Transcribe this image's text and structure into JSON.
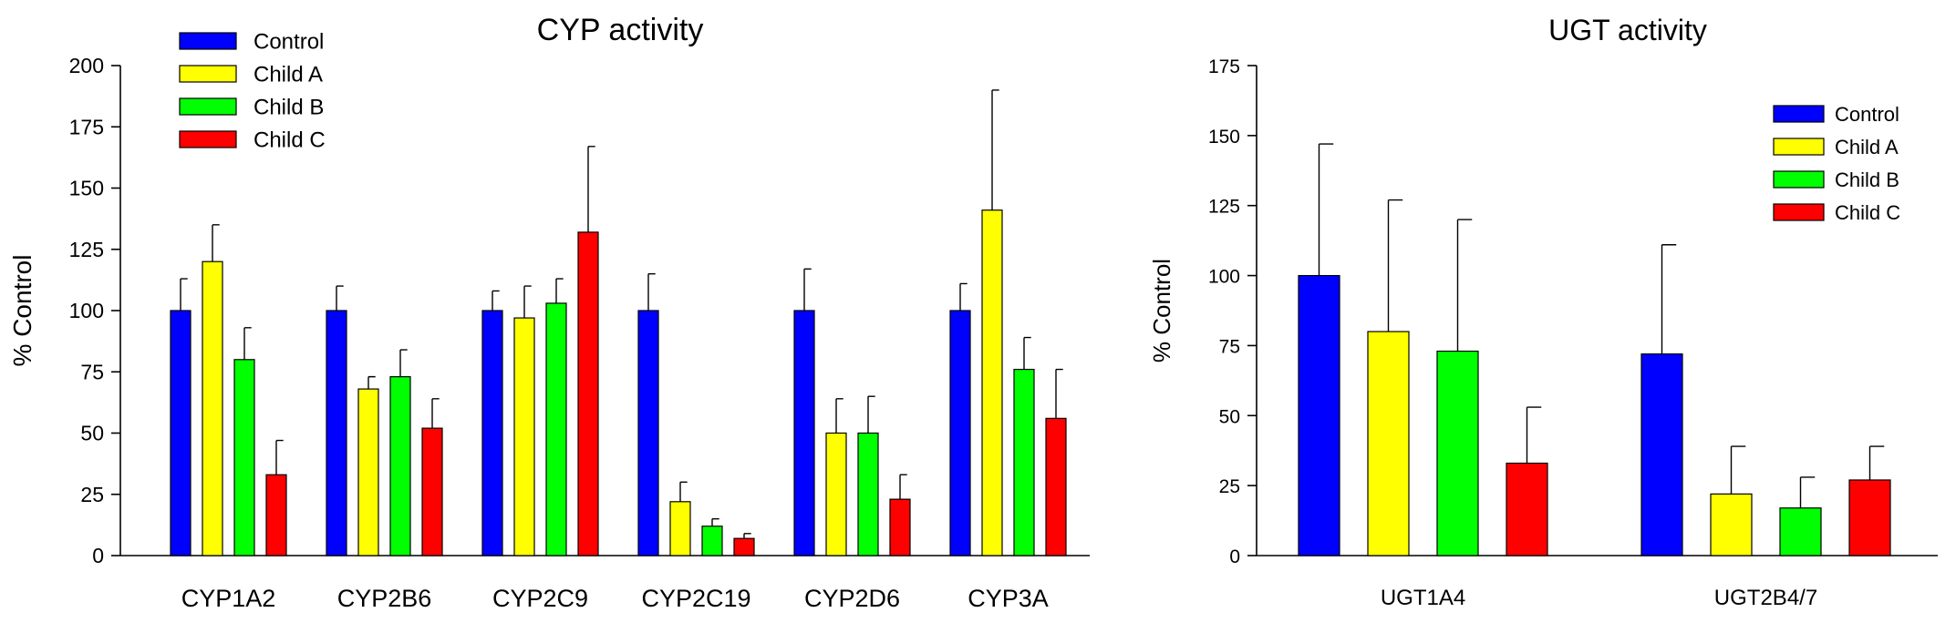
{
  "chart_data": [
    {
      "type": "bar",
      "title": "CYP activity",
      "xlabel": "",
      "ylabel": "% Control",
      "ylim": [
        0,
        200
      ],
      "yticks": [
        0,
        25,
        50,
        75,
        100,
        125,
        150,
        175,
        200
      ],
      "categories": [
        "CYP1A2",
        "CYP2B6",
        "CYP2C9",
        "CYP2C19",
        "CYP2D6",
        "CYP3A"
      ],
      "legend_position": "top-left",
      "series": [
        {
          "name": "Control",
          "color": "#0000ff",
          "values": [
            100,
            100,
            100,
            100,
            100,
            100
          ],
          "errors": [
            13,
            10,
            8,
            15,
            17,
            11
          ]
        },
        {
          "name": "Child A",
          "color": "#ffff00",
          "values": [
            120,
            68,
            97,
            22,
            50,
            141
          ],
          "errors": [
            15,
            5,
            13,
            8,
            14,
            49
          ]
        },
        {
          "name": "Child B",
          "color": "#00ff00",
          "values": [
            80,
            73,
            103,
            12,
            50,
            76
          ],
          "errors": [
            13,
            11,
            10,
            3,
            15,
            13
          ]
        },
        {
          "name": "Child C",
          "color": "#ff0000",
          "values": [
            33,
            52,
            132,
            7,
            23,
            56
          ],
          "errors": [
            14,
            12,
            35,
            2,
            10,
            20
          ]
        }
      ]
    },
    {
      "type": "bar",
      "title": "UGT activity",
      "xlabel": "",
      "ylabel": "% Control",
      "ylim": [
        0,
        175
      ],
      "yticks": [
        0,
        25,
        50,
        75,
        100,
        125,
        150,
        175
      ],
      "categories": [
        "UGT1A4",
        "UGT2B4/7"
      ],
      "legend_position": "top-right",
      "series": [
        {
          "name": "Control",
          "color": "#0000ff",
          "values": [
            100,
            72
          ],
          "errors": [
            47,
            39
          ]
        },
        {
          "name": "Child A",
          "color": "#ffff00",
          "values": [
            80,
            22
          ],
          "errors": [
            47,
            17
          ]
        },
        {
          "name": "Child B",
          "color": "#00ff00",
          "values": [
            73,
            17
          ],
          "errors": [
            47,
            11
          ]
        },
        {
          "name": "Child C",
          "color": "#ff0000",
          "values": [
            33,
            27
          ],
          "errors": [
            20,
            12
          ]
        }
      ]
    }
  ]
}
